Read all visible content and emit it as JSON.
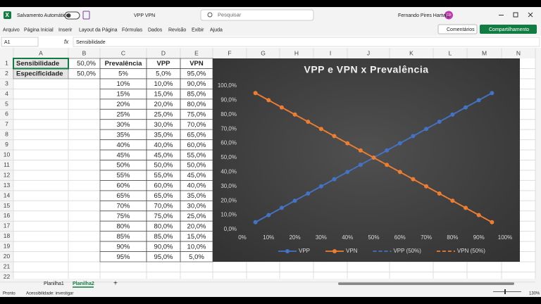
{
  "titlebar": {
    "autosave": "Salvamento Automático",
    "filename": "VPP VPN",
    "search": "Pesquisar",
    "user": "Fernando Pires Hartwig",
    "initials": "FP"
  },
  "menu": [
    "Arquivo",
    "Página Inicial",
    "Inserir",
    "Layout da Página",
    "Fórmulas",
    "Dados",
    "Revisão",
    "Exibir",
    "Ajuda"
  ],
  "buttons": {
    "comments": "Comentários",
    "share": "Compartilhamento"
  },
  "formula_bar": {
    "name_box": "A1",
    "fx": "fx",
    "formula": "Sensibilidade"
  },
  "columns": [
    "A",
    "B",
    "C",
    "D",
    "E",
    "F",
    "G",
    "H",
    "I",
    "J",
    "K",
    "L",
    "M",
    "N"
  ],
  "rows": [
    1,
    2,
    3,
    4,
    5,
    6,
    7,
    8,
    9,
    10,
    11,
    12,
    13,
    14,
    15,
    16,
    17,
    18,
    19,
    20,
    21,
    22
  ],
  "inputs": [
    {
      "label": "Sensibilidade",
      "value": "50,0%"
    },
    {
      "label": "Especificidade",
      "value": "50,0%"
    }
  ],
  "table": {
    "header": [
      "Prevalência",
      "VPP",
      "VPN"
    ],
    "rows": [
      [
        "5%",
        "5,0%",
        "95,0%"
      ],
      [
        "10%",
        "10,0%",
        "90,0%"
      ],
      [
        "15%",
        "15,0%",
        "85,0%"
      ],
      [
        "20%",
        "20,0%",
        "80,0%"
      ],
      [
        "25%",
        "25,0%",
        "75,0%"
      ],
      [
        "30%",
        "30,0%",
        "70,0%"
      ],
      [
        "35%",
        "35,0%",
        "65,0%"
      ],
      [
        "40%",
        "40,0%",
        "60,0%"
      ],
      [
        "45%",
        "45,0%",
        "55,0%"
      ],
      [
        "50%",
        "50,0%",
        "50,0%"
      ],
      [
        "55%",
        "55,0%",
        "45,0%"
      ],
      [
        "60%",
        "60,0%",
        "40,0%"
      ],
      [
        "65%",
        "65,0%",
        "35,0%"
      ],
      [
        "70%",
        "70,0%",
        "30,0%"
      ],
      [
        "75%",
        "75,0%",
        "25,0%"
      ],
      [
        "80%",
        "80,0%",
        "20,0%"
      ],
      [
        "85%",
        "85,0%",
        "15,0%"
      ],
      [
        "90%",
        "90,0%",
        "10,0%"
      ],
      [
        "95%",
        "95,0%",
        "5,0%"
      ]
    ]
  },
  "chart_data": {
    "type": "line",
    "title": "VPP e VPN x Prevalência",
    "x": [
      5,
      10,
      15,
      20,
      25,
      30,
      35,
      40,
      45,
      50,
      55,
      60,
      65,
      70,
      75,
      80,
      85,
      90,
      95
    ],
    "series": [
      {
        "name": "VPP",
        "color": "#4472c4",
        "marker": true,
        "dashed": false,
        "values": [
          5,
          10,
          15,
          20,
          25,
          30,
          35,
          40,
          45,
          50,
          55,
          60,
          65,
          70,
          75,
          80,
          85,
          90,
          95
        ]
      },
      {
        "name": "VPN",
        "color": "#ed7d31",
        "marker": true,
        "dashed": false,
        "values": [
          95,
          90,
          85,
          80,
          75,
          70,
          65,
          60,
          55,
          50,
          45,
          40,
          35,
          30,
          25,
          20,
          15,
          10,
          5
        ]
      },
      {
        "name": "VPP (50%)",
        "color": "#4472c4",
        "marker": false,
        "dashed": true,
        "values": [
          5,
          10,
          15,
          20,
          25,
          30,
          35,
          40,
          45,
          50,
          55,
          60,
          65,
          70,
          75,
          80,
          85,
          90,
          95
        ]
      },
      {
        "name": "VPN (50%)",
        "color": "#ed7d31",
        "marker": false,
        "dashed": true,
        "values": [
          95,
          90,
          85,
          80,
          75,
          70,
          65,
          60,
          55,
          50,
          45,
          40,
          35,
          30,
          25,
          20,
          15,
          10,
          5
        ]
      }
    ],
    "xlim": [
      0,
      100
    ],
    "xticks": [
      {
        "value": 0,
        "label": "0%"
      },
      {
        "value": 10,
        "label": "10%"
      },
      {
        "value": 20,
        "label": "20%"
      },
      {
        "value": 30,
        "label": "30%"
      },
      {
        "value": 40,
        "label": "40%"
      },
      {
        "value": 50,
        "label": "50%"
      },
      {
        "value": 60,
        "label": "60%"
      },
      {
        "value": 70,
        "label": "70%"
      },
      {
        "value": 80,
        "label": "80%"
      },
      {
        "value": 90,
        "label": "90%"
      },
      {
        "value": 100,
        "label": "100%"
      }
    ],
    "ylim": [
      0,
      100
    ],
    "yticks": [
      {
        "value": 0,
        "label": "0,0%"
      },
      {
        "value": 10,
        "label": "10,0%"
      },
      {
        "value": 20,
        "label": "20,0%"
      },
      {
        "value": 30,
        "label": "30,0%"
      },
      {
        "value": 40,
        "label": "40,0%"
      },
      {
        "value": 50,
        "label": "50,0%"
      },
      {
        "value": 60,
        "label": "60,0%"
      },
      {
        "value": 70,
        "label": "70,0%"
      },
      {
        "value": 80,
        "label": "80,0%"
      },
      {
        "value": 90,
        "label": "90,0%"
      },
      {
        "value": 100,
        "label": "100,0%"
      }
    ],
    "grid": false,
    "legend": "bottom"
  },
  "sheets": [
    "Planilha1",
    "Planilha2"
  ],
  "add_sheet": "+",
  "status": {
    "ready": "Pronto",
    "accessibility": "Acessibilidade: investigar",
    "zoom": "130%"
  }
}
